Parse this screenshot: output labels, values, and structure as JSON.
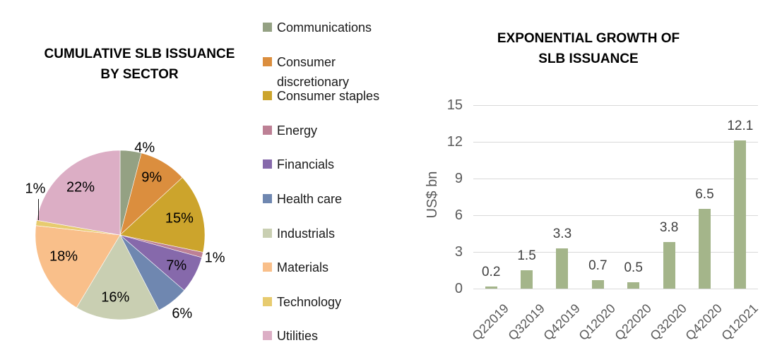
{
  "figure": {
    "background": "#ffffff"
  },
  "chart_data": [
    {
      "type": "pie",
      "title": "CUMULATIVE SLB ISSUANCE BY SECTOR",
      "title_lines": [
        "CUMULATIVE SLB ISSUANCE",
        "BY SECTOR"
      ],
      "legend_position": "right",
      "slices": [
        {
          "label": "Communications",
          "value_pct": 4,
          "data_label": "4%",
          "color": "#94a183"
        },
        {
          "label": "Consumer discretionary",
          "value_pct": 9,
          "data_label": "9%",
          "color": "#db8e3e"
        },
        {
          "label": "Consumer staples",
          "value_pct": 15,
          "data_label": "15%",
          "color": "#cca42c"
        },
        {
          "label": "Energy",
          "value_pct": 1,
          "data_label": "1%",
          "color": "#bd8095"
        },
        {
          "label": "Financials",
          "value_pct": 7,
          "data_label": "7%",
          "color": "#8669ab"
        },
        {
          "label": "Health care",
          "value_pct": 6,
          "data_label": "6%",
          "color": "#6f87b0"
        },
        {
          "label": "Industrials",
          "value_pct": 16,
          "data_label": "16%",
          "color": "#c9cfb2"
        },
        {
          "label": "Materials",
          "value_pct": 18,
          "data_label": "18%",
          "color": "#f9bf8a"
        },
        {
          "label": "Technology",
          "value_pct": 1,
          "data_label": "1%",
          "color": "#e7cb6f"
        },
        {
          "label": "Utilities",
          "value_pct": 22,
          "data_label": "22%",
          "color": "#dcaec5"
        }
      ]
    },
    {
      "type": "bar",
      "title": "EXPONENTIAL GROWTH OF SLB ISSUANCE",
      "title_lines": [
        "EXPONENTIAL GROWTH OF",
        "SLB ISSUANCE"
      ],
      "ylabel": "US$ bn",
      "xlabel": "",
      "categories": [
        "Q22019",
        "Q32019",
        "Q42019",
        "Q12020",
        "Q22020",
        "Q32020",
        "Q42020",
        "Q12021"
      ],
      "values": [
        0.2,
        1.5,
        3.3,
        0.7,
        0.5,
        3.8,
        6.5,
        12.1
      ],
      "data_labels": [
        "0.2",
        "1.5",
        "3.3",
        "0.7",
        "0.5",
        "3.8",
        "6.5",
        "12.1"
      ],
      "yticks": [
        0,
        3,
        6,
        9,
        12,
        15
      ],
      "ylim": [
        0,
        15
      ],
      "grid": true,
      "bar_color": "#a4b58a",
      "gridline_color": "#d9d9d9"
    }
  ]
}
